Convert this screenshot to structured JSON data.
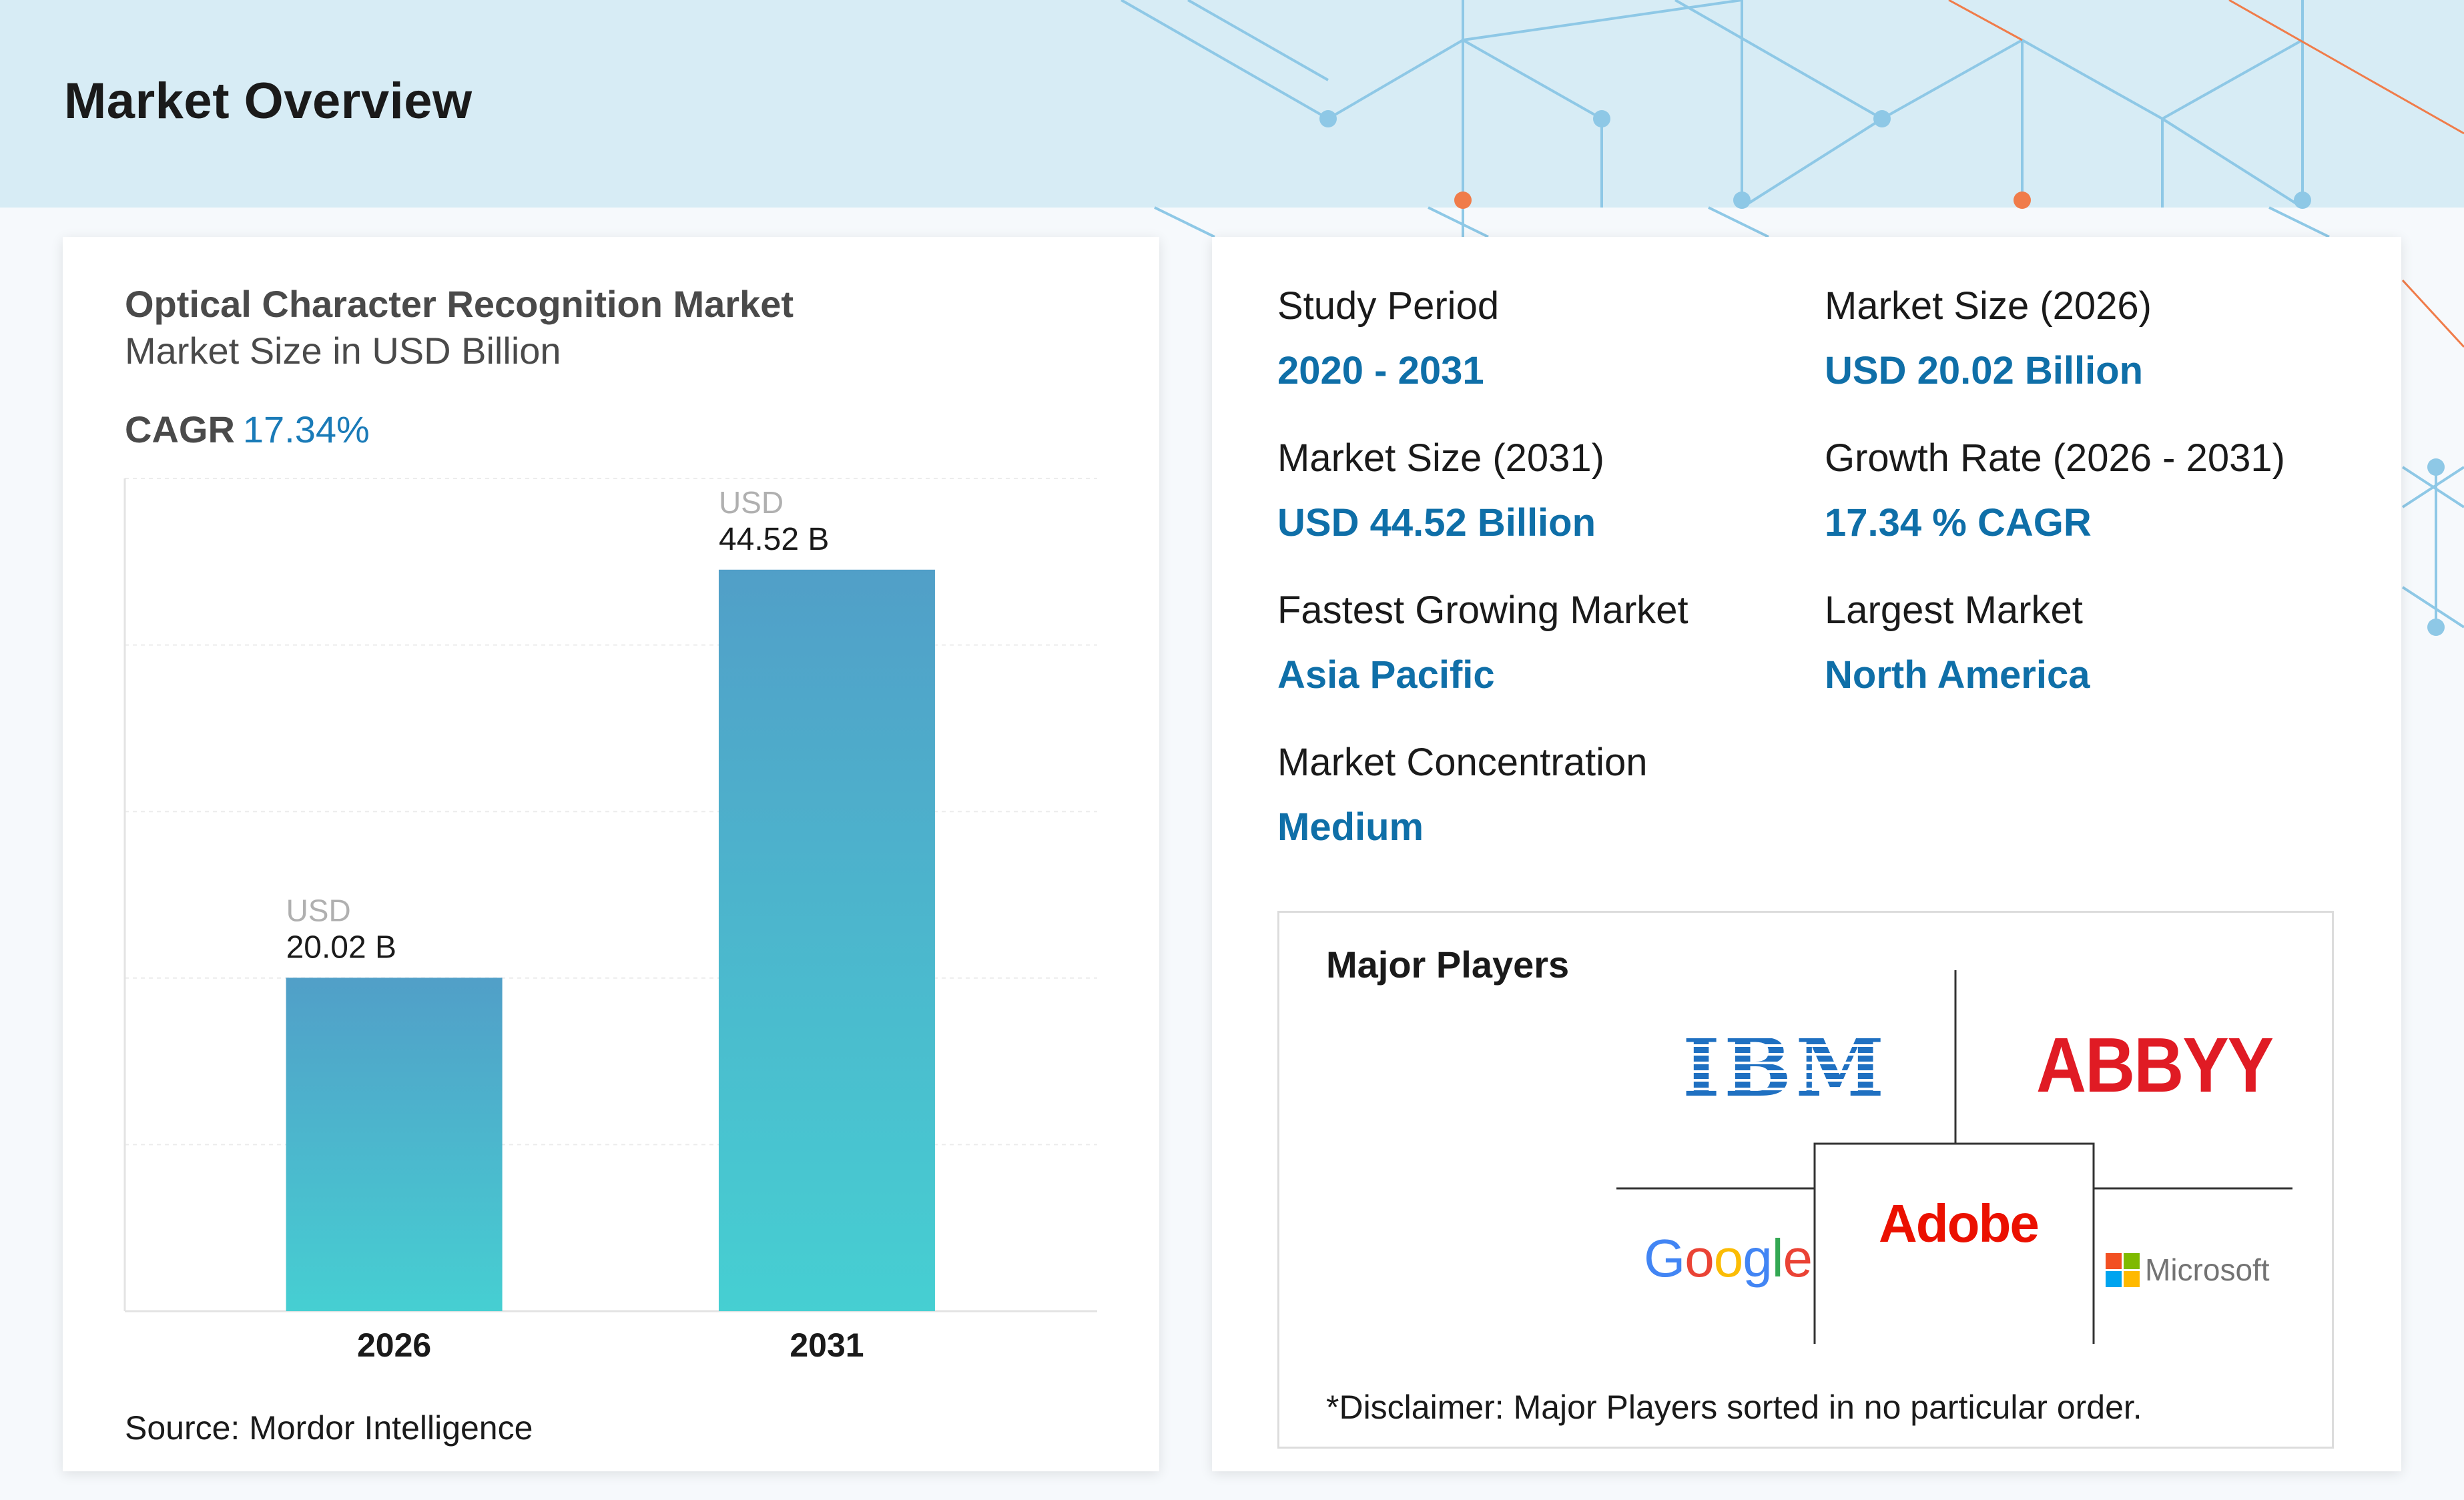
{
  "header": {
    "title": "Market Overview"
  },
  "chart_card": {
    "title": "Optical Character Recognition Market",
    "subtitle": "Market Size in USD Billion",
    "cagr_label": "CAGR",
    "cagr_value": "17.34%",
    "source": "Source: Mordor Intelligence"
  },
  "chart_data": {
    "type": "bar",
    "title": "Optical Character Recognition Market",
    "subtitle": "Market Size in USD Billion",
    "categories": [
      "2026",
      "2031"
    ],
    "values": [
      20.02,
      44.52
    ],
    "value_labels_top": [
      "USD",
      "USD"
    ],
    "value_labels": [
      "20.02 B",
      "44.52 B"
    ],
    "ylim": [
      0,
      50
    ],
    "grid": true,
    "colors": {
      "bar_top": "#519fc8",
      "bar_bottom": "#46cfd2"
    }
  },
  "stats": [
    {
      "label": "Study Period",
      "value": "2020 - 2031"
    },
    {
      "label": "Market Size (2026)",
      "value": "USD 20.02 Billion"
    },
    {
      "label": "Market Size (2031)",
      "value": "USD 44.52 Billion"
    },
    {
      "label": "Growth Rate (2026 - 2031)",
      "value": "17.34 % CAGR"
    },
    {
      "label": "Fastest Growing Market",
      "value": "Asia Pacific"
    },
    {
      "label": "Largest Market",
      "value": "North America"
    },
    {
      "label": "Market Concentration",
      "value": "Medium"
    }
  ],
  "players": {
    "title": "Major Players",
    "logos": [
      "IBM",
      "ABBYY",
      "Adobe",
      "Google",
      "Microsoft"
    ],
    "disclaimer": "*Disclaimer: Major Players sorted in no particular order."
  },
  "colors": {
    "accent": "#0f6fa8",
    "header_bg": "#d7ecf5",
    "network_blue": "#8ec8e6",
    "network_orange": "#f07c4a"
  }
}
